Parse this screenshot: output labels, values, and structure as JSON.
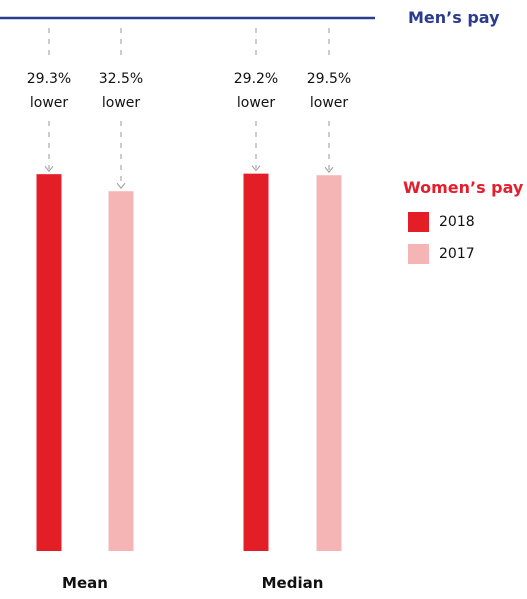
{
  "chart_data": {
    "type": "bar",
    "categories": [
      "Mean",
      "Median"
    ],
    "series": [
      {
        "name": "2018",
        "values": [
          70.7,
          70.8
        ],
        "gaps": [
          "29.3%",
          "29.2%"
        ]
      },
      {
        "name": "2017",
        "values": [
          67.5,
          70.5
        ],
        "gaps": [
          "32.5%",
          "29.5%"
        ]
      }
    ],
    "reference": {
      "label": "Men’s pay",
      "value": 100
    },
    "women_legend_title": "Women’s pay",
    "gap_word": "lower",
    "ylim": [
      0,
      100
    ],
    "legend_position": "right",
    "colors": {
      "men": "#2b3b8f",
      "women_title": "#e41f2d",
      "2018": "#e31e27",
      "2017": "#f5b5b5",
      "leader": "#9a9a9a"
    }
  }
}
